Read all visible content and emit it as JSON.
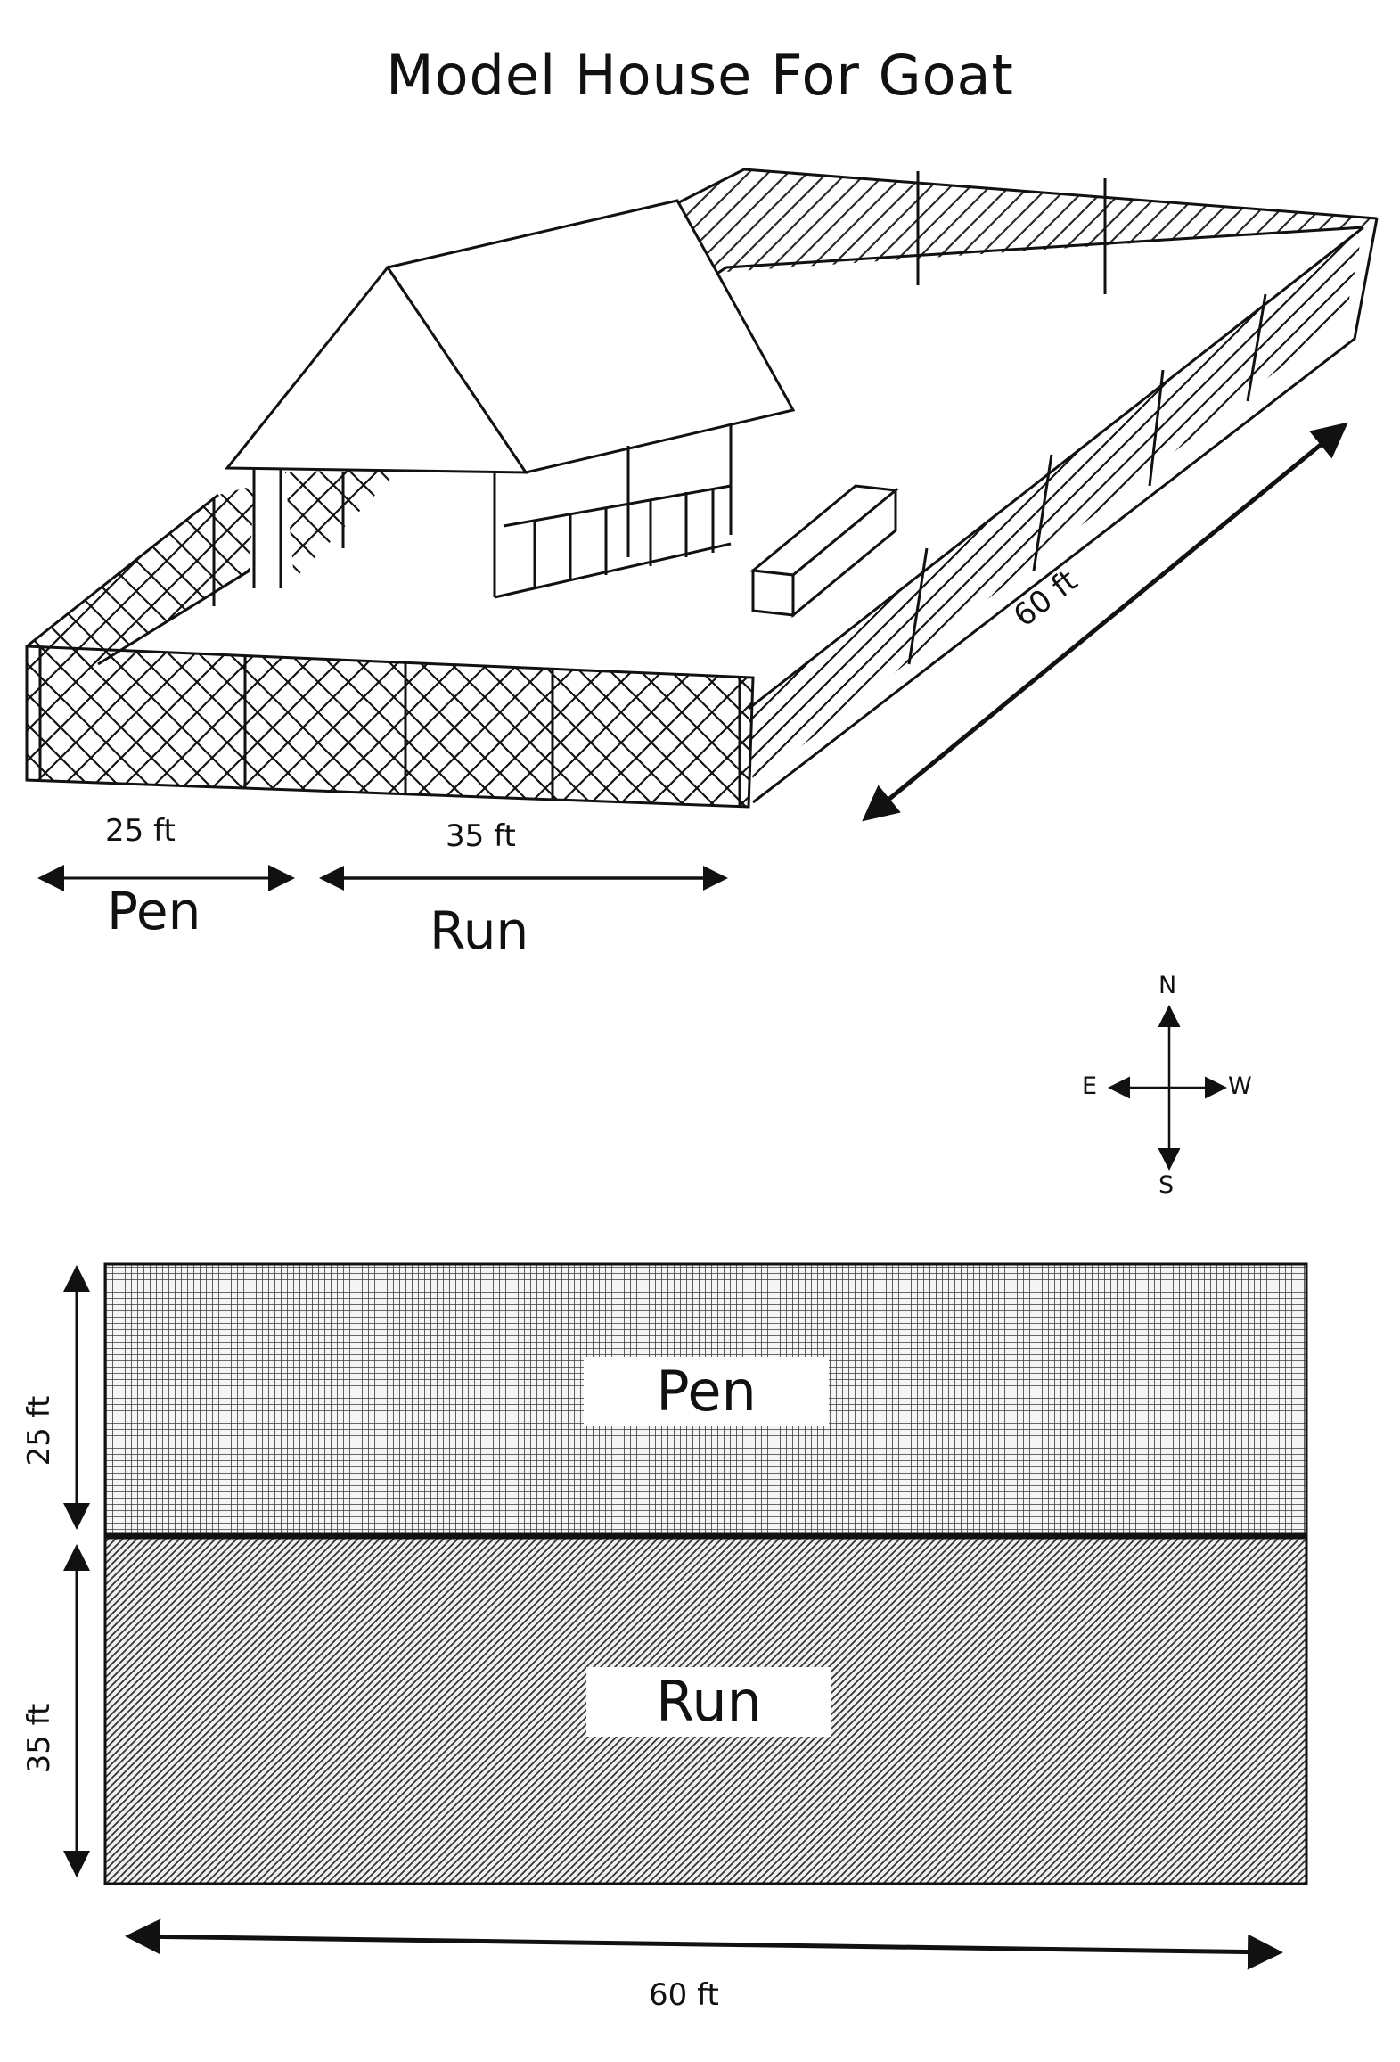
{
  "title": "Model House For Goat",
  "perspective": {
    "pen_dim": "25 ft",
    "run_dim": "35 ft",
    "length_dim": "60 ft",
    "pen_label": "Pen",
    "run_label": "Run"
  },
  "compass": {
    "north": "N",
    "south": "S",
    "east": "E",
    "west": "W"
  },
  "plan": {
    "pen_label": "Pen",
    "run_label": "Run",
    "pen_dim": "25 ft",
    "run_dim": "35 ft",
    "length_dim": "60 ft"
  },
  "colors": {
    "ink": "#111111",
    "pen_fill": "#8a8a8a",
    "run_fill": "#9a9a9a"
  }
}
